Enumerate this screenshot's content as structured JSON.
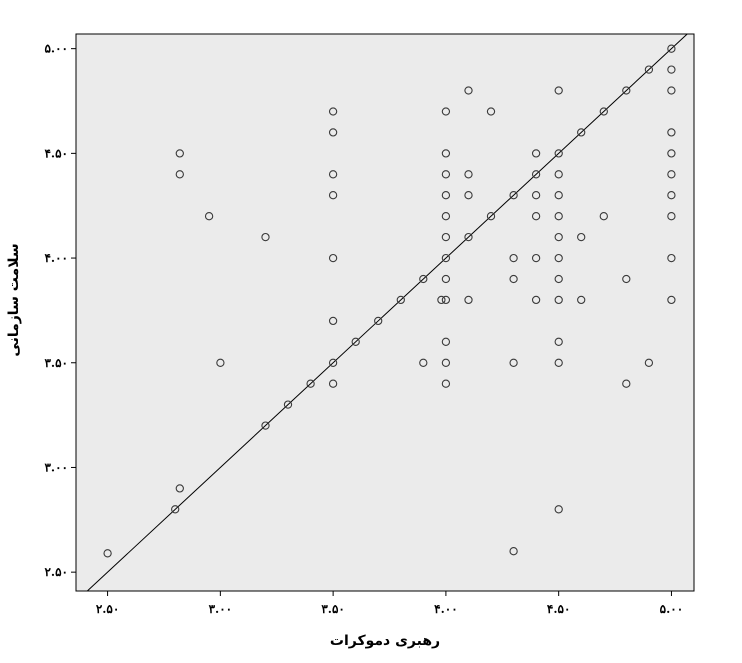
{
  "chart_data": {
    "type": "scatter",
    "xlabel": "رهبری دموکرات",
    "ylabel": "سلامت سازمانی",
    "xlim": [
      2.36,
      5.1
    ],
    "ylim": [
      2.41,
      5.07
    ],
    "x_ticks": [
      2.5,
      3.0,
      3.5,
      4.0,
      4.5,
      5.0
    ],
    "x_tick_labels": [
      "۲.۵۰",
      "۳.۰۰",
      "۳.۵۰",
      "۴.۰۰",
      "۴.۵۰",
      "۵.۰۰"
    ],
    "y_ticks": [
      2.5,
      3.0,
      3.5,
      4.0,
      4.5,
      5.0
    ],
    "y_tick_labels": [
      "۲.۵۰",
      "۳.۰۰",
      "۳.۵۰",
      "۴.۰۰",
      "۴.۵۰",
      "۵.۰۰"
    ],
    "reference_line": "y = x",
    "grid": false,
    "points": [
      [
        2.5,
        2.59
      ],
      [
        2.8,
        2.8
      ],
      [
        2.82,
        2.9
      ],
      [
        2.82,
        4.5
      ],
      [
        2.82,
        4.4
      ],
      [
        2.95,
        4.2
      ],
      [
        3.0,
        3.5
      ],
      [
        3.2,
        3.2
      ],
      [
        3.2,
        4.1
      ],
      [
        3.3,
        3.3
      ],
      [
        3.4,
        3.4
      ],
      [
        3.5,
        3.4
      ],
      [
        3.5,
        3.5
      ],
      [
        3.5,
        3.7
      ],
      [
        3.5,
        4.0
      ],
      [
        3.5,
        4.3
      ],
      [
        3.5,
        4.4
      ],
      [
        3.5,
        4.6
      ],
      [
        3.5,
        4.7
      ],
      [
        3.6,
        3.6
      ],
      [
        3.7,
        3.7
      ],
      [
        3.8,
        3.8
      ],
      [
        3.9,
        3.5
      ],
      [
        3.9,
        3.9
      ],
      [
        3.98,
        3.8
      ],
      [
        4.0,
        3.4
      ],
      [
        4.0,
        3.5
      ],
      [
        4.0,
        3.6
      ],
      [
        4.0,
        3.8
      ],
      [
        4.0,
        3.9
      ],
      [
        4.0,
        4.0
      ],
      [
        4.0,
        4.1
      ],
      [
        4.0,
        4.2
      ],
      [
        4.0,
        4.3
      ],
      [
        4.0,
        4.4
      ],
      [
        4.0,
        4.5
      ],
      [
        4.0,
        4.7
      ],
      [
        4.1,
        3.8
      ],
      [
        4.1,
        4.1
      ],
      [
        4.1,
        4.3
      ],
      [
        4.1,
        4.4
      ],
      [
        4.1,
        4.8
      ],
      [
        4.2,
        4.2
      ],
      [
        4.2,
        4.7
      ],
      [
        4.3,
        2.6
      ],
      [
        4.3,
        3.5
      ],
      [
        4.3,
        3.9
      ],
      [
        4.3,
        4.0
      ],
      [
        4.3,
        4.3
      ],
      [
        4.4,
        3.8
      ],
      [
        4.4,
        4.0
      ],
      [
        4.4,
        4.2
      ],
      [
        4.4,
        4.3
      ],
      [
        4.4,
        4.4
      ],
      [
        4.4,
        4.5
      ],
      [
        4.5,
        2.8
      ],
      [
        4.5,
        3.5
      ],
      [
        4.5,
        3.6
      ],
      [
        4.5,
        3.8
      ],
      [
        4.5,
        3.9
      ],
      [
        4.5,
        4.0
      ],
      [
        4.5,
        4.1
      ],
      [
        4.5,
        4.2
      ],
      [
        4.5,
        4.3
      ],
      [
        4.5,
        4.4
      ],
      [
        4.5,
        4.5
      ],
      [
        4.5,
        4.8
      ],
      [
        4.6,
        3.8
      ],
      [
        4.6,
        4.1
      ],
      [
        4.6,
        4.6
      ],
      [
        4.7,
        4.2
      ],
      [
        4.7,
        4.7
      ],
      [
        4.8,
        3.4
      ],
      [
        4.8,
        3.9
      ],
      [
        4.8,
        4.8
      ],
      [
        4.9,
        3.5
      ],
      [
        4.9,
        4.9
      ],
      [
        5.0,
        3.8
      ],
      [
        5.0,
        4.0
      ],
      [
        5.0,
        4.2
      ],
      [
        5.0,
        4.3
      ],
      [
        5.0,
        4.4
      ],
      [
        5.0,
        4.5
      ],
      [
        5.0,
        4.6
      ],
      [
        5.0,
        4.8
      ],
      [
        5.0,
        4.9
      ],
      [
        5.0,
        5.0
      ]
    ]
  }
}
